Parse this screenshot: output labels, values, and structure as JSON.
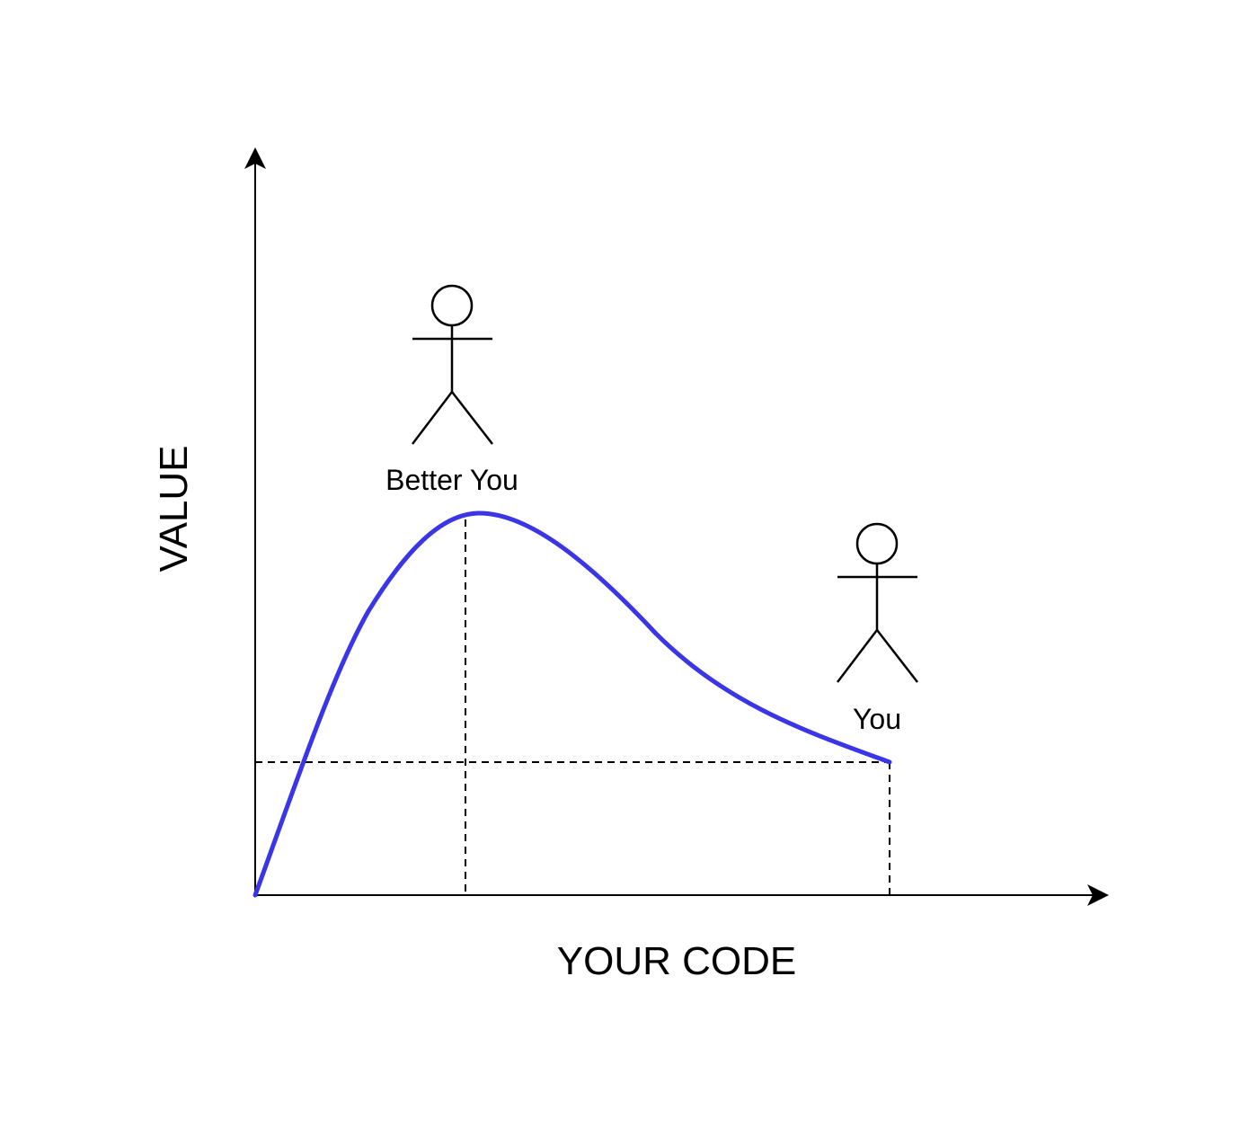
{
  "diagram": {
    "x_axis_label": "YOUR CODE",
    "y_axis_label": "VALUE",
    "curve_color": "#3b35e8",
    "line_color": "#000000",
    "people": [
      {
        "label": "Better You",
        "icon": "stick-figure-icon"
      },
      {
        "label": "You",
        "icon": "stick-figure-icon"
      }
    ]
  }
}
